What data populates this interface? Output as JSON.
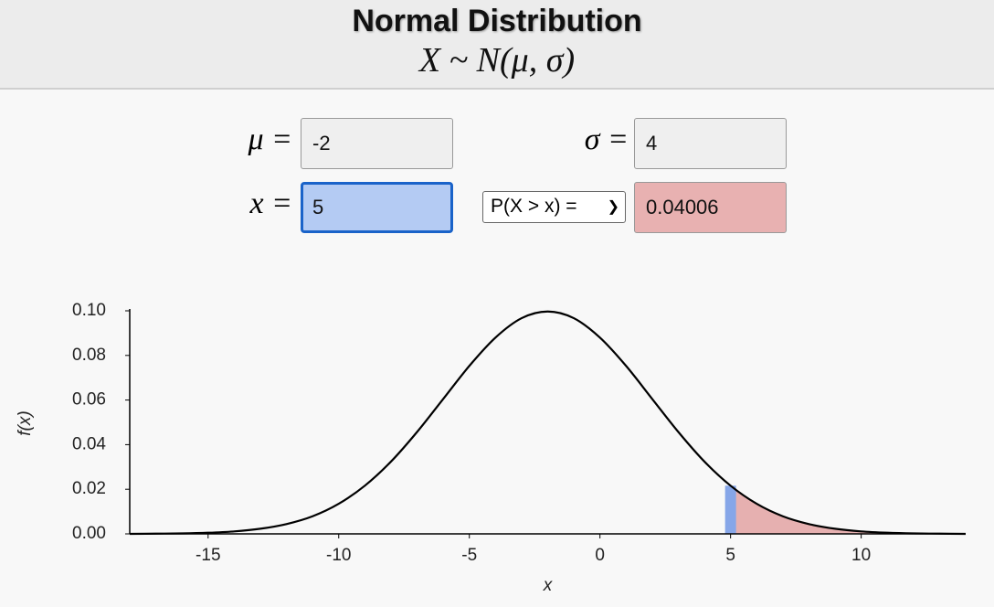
{
  "header": {
    "title": "Normal Distribution",
    "subtitle": "X ~ N(μ, σ)"
  },
  "controls": {
    "mu": {
      "label": "μ =",
      "value": "-2"
    },
    "sigma": {
      "label": "σ =",
      "value": "4"
    },
    "x": {
      "label": "x =",
      "value": "5"
    },
    "mode": "P(X > x) =",
    "result": "0.04006"
  },
  "chart_data": {
    "type": "line",
    "x_label": "x",
    "y_label": "f(x)",
    "x": [
      -18,
      -17,
      -16,
      -15,
      -14,
      -13,
      -12,
      -11,
      -10,
      -9,
      -8,
      -7,
      -6,
      -5,
      -4,
      -3,
      -2,
      -1,
      0,
      1,
      2,
      3,
      4,
      5,
      6,
      7,
      8,
      9,
      10,
      11,
      12,
      13,
      14
    ],
    "values": [
      0.0,
      0.0001,
      0.0002,
      0.0005,
      0.0011,
      0.0023,
      0.0044,
      0.0079,
      0.0135,
      0.0216,
      0.0324,
      0.0457,
      0.0605,
      0.0753,
      0.088,
      0.0967,
      0.0997,
      0.0967,
      0.088,
      0.0753,
      0.0605,
      0.0457,
      0.0324,
      0.0216,
      0.0135,
      0.0079,
      0.0044,
      0.0023,
      0.0011,
      0.0005,
      0.0002,
      0.0001,
      0.0
    ],
    "color": "#000000",
    "shade_color": "#e6b0b0",
    "marker_color": "#86a6e8",
    "xlim": [
      -18,
      14
    ],
    "xticks": [
      -15,
      -10,
      -5,
      0,
      5,
      10
    ],
    "ylim": [
      0,
      0.1
    ],
    "yticks": [
      {
        "value": 0,
        "label": "0.00"
      },
      {
        "value": 0.02,
        "label": "0.02"
      },
      {
        "value": 0.04,
        "label": "0.04"
      },
      {
        "value": 0.06,
        "label": "0.06"
      },
      {
        "value": 0.08,
        "label": "0.08"
      },
      {
        "value": 0.1,
        "label": "0.10"
      }
    ]
  }
}
